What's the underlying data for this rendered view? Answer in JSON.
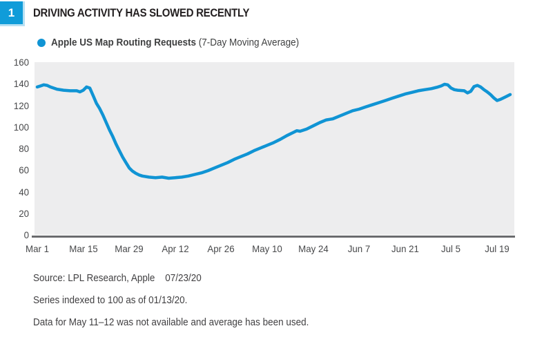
{
  "figure": {
    "number": "1",
    "title": "DRIVING ACTIVITY HAS SLOWED RECENTLY"
  },
  "legend": {
    "series_bold": "Apple US Map Routing Requests",
    "series_note": "(7-Day Moving Average)"
  },
  "footnotes": {
    "source_label": "Source: LPL Research, Apple",
    "source_date": "07/23/20",
    "note_indexed": "Series indexed to 100 as of 01/13/20.",
    "note_missing": "Data for May 11–12 was not available and average has been used."
  },
  "colors": {
    "accent_blue": "#1094d4",
    "badge_blue": "#109cd9",
    "badge_edge_blue": "#b8e0f3",
    "plot_background": "#ededee",
    "axis_line_gray": "#6a6b6e",
    "tick_text_gray": "#47484a",
    "footnote_text_gray": "#414042",
    "title_black": "#231f20"
  },
  "chart_data": {
    "type": "line",
    "title": "Apple US Map Routing Requests (7-Day Moving Average)",
    "xlabel": "",
    "ylabel": "",
    "x_unit": "days since Mar 1, 2020",
    "ylim": [
      0,
      160
    ],
    "xlim": [
      0,
      146
    ],
    "yticks": [
      0,
      20,
      40,
      60,
      80,
      100,
      120,
      140,
      160
    ],
    "xticks": [
      {
        "day": 0,
        "label": "Mar 1"
      },
      {
        "day": 14,
        "label": "Mar 15"
      },
      {
        "day": 28,
        "label": "Mar 29"
      },
      {
        "day": 42,
        "label": "Apr 12"
      },
      {
        "day": 56,
        "label": "Apr 26"
      },
      {
        "day": 70,
        "label": "May 10"
      },
      {
        "day": 84,
        "label": "May 24"
      },
      {
        "day": 98,
        "label": "Jun 7"
      },
      {
        "day": 112,
        "label": "Jun 21"
      },
      {
        "day": 126,
        "label": "Jul 5"
      },
      {
        "day": 140,
        "label": "Jul 19"
      }
    ],
    "grid": false,
    "legend_position": "top-left",
    "series": [
      {
        "name": "Apple US Map Routing Requests (7-Day Moving Average)",
        "color": "#1094d4",
        "points": [
          [
            0,
            137
          ],
          [
            1,
            138
          ],
          [
            2,
            139
          ],
          [
            3,
            138.5
          ],
          [
            4,
            137
          ],
          [
            6,
            135
          ],
          [
            8,
            134
          ],
          [
            10,
            133.5
          ],
          [
            12,
            133.5
          ],
          [
            13,
            132.5
          ],
          [
            14,
            134
          ],
          [
            15,
            137
          ],
          [
            16,
            136
          ],
          [
            17,
            129
          ],
          [
            18,
            122
          ],
          [
            19,
            117
          ],
          [
            20,
            111
          ],
          [
            21,
            104
          ],
          [
            22,
            97
          ],
          [
            23,
            91
          ],
          [
            24,
            84
          ],
          [
            25,
            78
          ],
          [
            26,
            72
          ],
          [
            27,
            67
          ],
          [
            28,
            62
          ],
          [
            29,
            59
          ],
          [
            30,
            57
          ],
          [
            31,
            55.5
          ],
          [
            32,
            54.5
          ],
          [
            34,
            53.5
          ],
          [
            36,
            53
          ],
          [
            38,
            53.5
          ],
          [
            40,
            52.5
          ],
          [
            42,
            53
          ],
          [
            44,
            53.5
          ],
          [
            46,
            54.5
          ],
          [
            48,
            56
          ],
          [
            50,
            57.5
          ],
          [
            52,
            59.5
          ],
          [
            54,
            62
          ],
          [
            56,
            64.5
          ],
          [
            58,
            67
          ],
          [
            60,
            70
          ],
          [
            62,
            72.5
          ],
          [
            64,
            75
          ],
          [
            66,
            78
          ],
          [
            68,
            80.5
          ],
          [
            70,
            83
          ],
          [
            72,
            85.5
          ],
          [
            74,
            88.5
          ],
          [
            76,
            92
          ],
          [
            78,
            95
          ],
          [
            79,
            96.5
          ],
          [
            80,
            96
          ],
          [
            82,
            98
          ],
          [
            84,
            101
          ],
          [
            86,
            104
          ],
          [
            88,
            106.5
          ],
          [
            89,
            107
          ],
          [
            90,
            107.5
          ],
          [
            92,
            110
          ],
          [
            94,
            112.5
          ],
          [
            96,
            115
          ],
          [
            98,
            116.5
          ],
          [
            100,
            118.5
          ],
          [
            102,
            120.5
          ],
          [
            104,
            122.5
          ],
          [
            106,
            124.5
          ],
          [
            108,
            126.5
          ],
          [
            110,
            128.5
          ],
          [
            112,
            130.5
          ],
          [
            114,
            132
          ],
          [
            116,
            133.5
          ],
          [
            118,
            134.5
          ],
          [
            120,
            135.5
          ],
          [
            122,
            137
          ],
          [
            123,
            138
          ],
          [
            124,
            139.5
          ],
          [
            125,
            139
          ],
          [
            126,
            136
          ],
          [
            127,
            134.5
          ],
          [
            128,
            134
          ],
          [
            130,
            133.5
          ],
          [
            131,
            131.5
          ],
          [
            132,
            133
          ],
          [
            133,
            137.5
          ],
          [
            134,
            138.5
          ],
          [
            135,
            137
          ],
          [
            136,
            134.5
          ],
          [
            137,
            132.5
          ],
          [
            138,
            130
          ],
          [
            139,
            127
          ],
          [
            140,
            124.5
          ],
          [
            141,
            125.5
          ],
          [
            142,
            127
          ],
          [
            143,
            128.5
          ],
          [
            144,
            130
          ]
        ]
      }
    ]
  }
}
